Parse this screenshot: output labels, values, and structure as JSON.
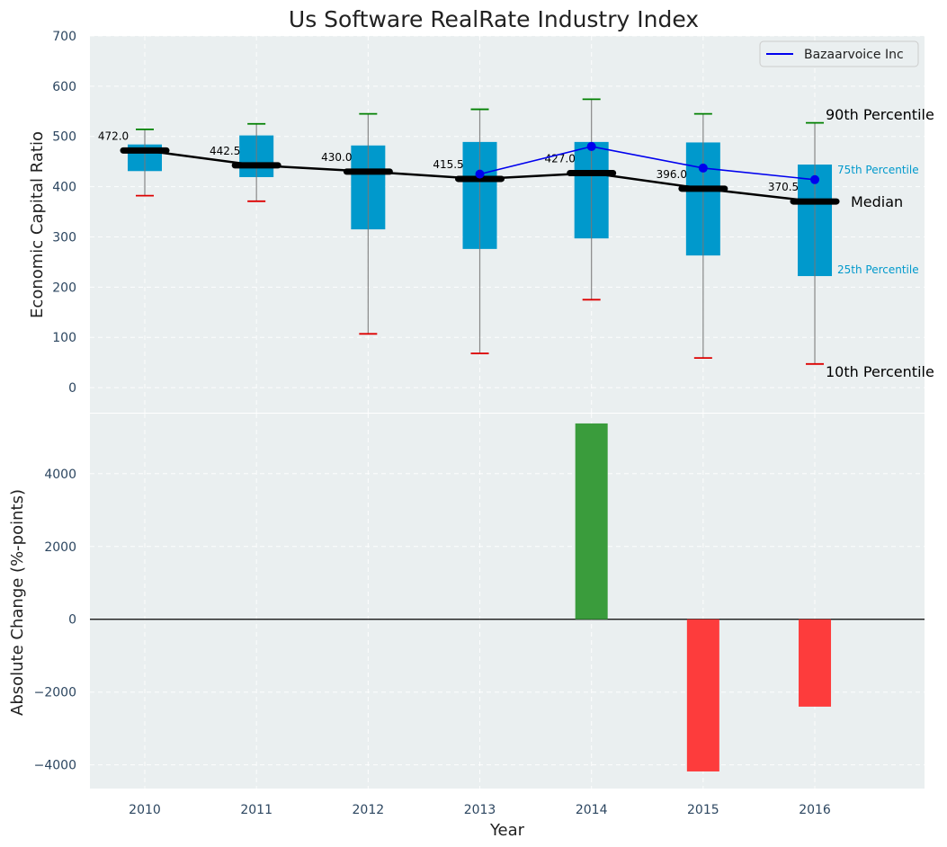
{
  "chart_data": [
    {
      "type": "box",
      "title": "Us Software RealRate Industry Index",
      "xlabel": "",
      "ylabel": "Economic Capital Ratio",
      "ylim": [
        -50,
        700
      ],
      "yticks": [
        0,
        100,
        200,
        300,
        400,
        500,
        600,
        700
      ],
      "grid": true,
      "categories": [
        "2010",
        "2011",
        "2012",
        "2013",
        "2014",
        "2015",
        "2016"
      ],
      "p10": [
        382,
        371,
        107,
        68,
        175,
        59,
        47
      ],
      "p25": [
        431,
        419,
        315,
        276,
        297,
        263,
        222
      ],
      "median": [
        472.0,
        442.5,
        430.0,
        415.5,
        427.0,
        396.0,
        370.5
      ],
      "p75": [
        484,
        502,
        482,
        489,
        489,
        488,
        444
      ],
      "p90": [
        514,
        525,
        545,
        554,
        574,
        545,
        527
      ],
      "company_series": {
        "name": "Bazaarvoice Inc",
        "categories": [
          "2013",
          "2014",
          "2015",
          "2016"
        ],
        "values": [
          425,
          480,
          437,
          414
        ],
        "color": "#0000ee"
      },
      "legend": {
        "position": "top-right",
        "entries": [
          "Bazaarvoice Inc"
        ]
      },
      "annotations": {
        "p90": "90th Percentile",
        "p75": "75th Percentile",
        "median": "Median",
        "p25": "25th Percentile",
        "p10": "10th Percentile"
      },
      "colors": {
        "box": "#0099cc",
        "whisker_high": "#008000",
        "whisker_low": "#dd0000",
        "median": "#000000",
        "background": "#eaeff0"
      }
    },
    {
      "type": "bar",
      "xlabel": "Year",
      "ylabel": "Absolute Change (%-points)",
      "ylim": [
        -4650,
        5650
      ],
      "yticks": [
        -4000,
        -2000,
        0,
        2000,
        4000
      ],
      "ytick_labels": [
        "−4000",
        "−2000",
        "0",
        "2000",
        "4000"
      ],
      "grid": true,
      "categories": [
        "2010",
        "2011",
        "2012",
        "2013",
        "2014",
        "2015",
        "2016"
      ],
      "values": [
        0,
        0,
        0,
        0,
        5380,
        -4180,
        -2400
      ],
      "colors": {
        "positive": "#3a9c3c",
        "negative": "#fd3c3c",
        "zero_line": "#000000"
      }
    }
  ]
}
